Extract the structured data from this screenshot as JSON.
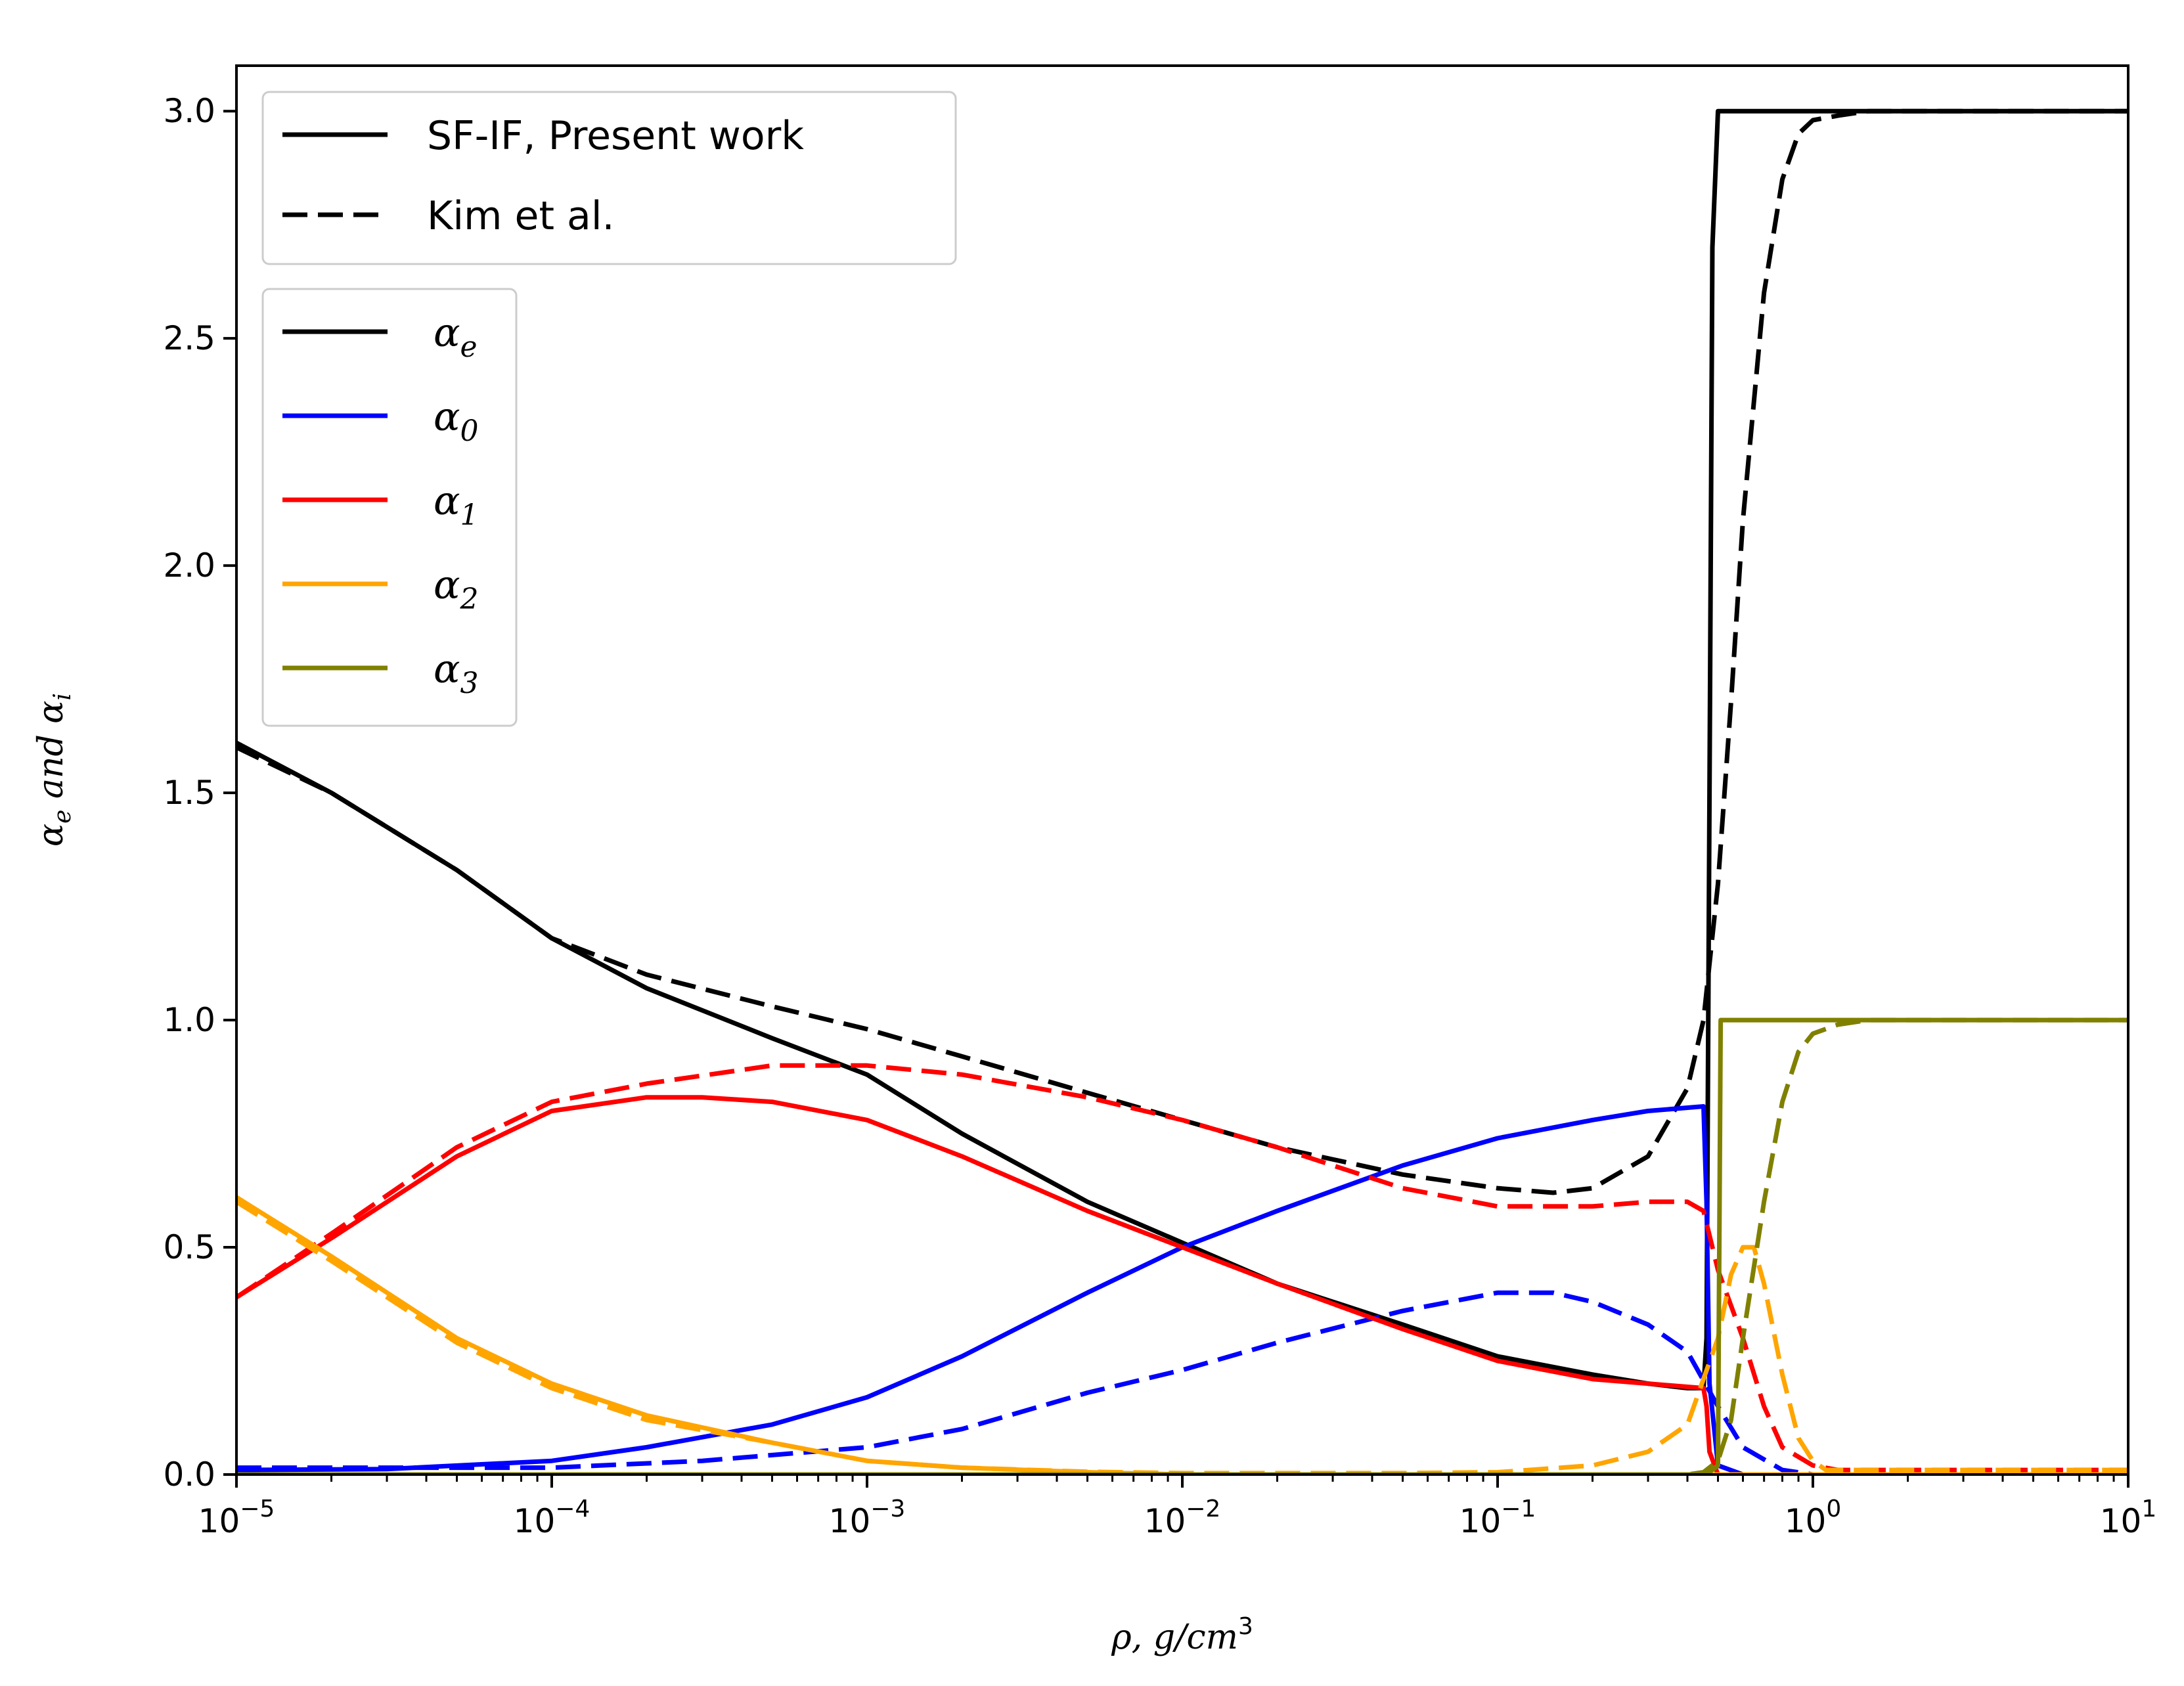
{
  "chart_data": {
    "type": "line",
    "xlabel": "ρ, g/cm3",
    "xlabel_parts": {
      "main": "ρ, g/cm",
      "sup": "3"
    },
    "ylabel": "αe and αi",
    "ylabel_parts": {
      "alpha": "α",
      "sub_e": "e",
      "and": " and ",
      "sub_i": "i"
    },
    "xscale": "log",
    "xlim": [
      1e-05,
      10
    ],
    "ylim": [
      0.0,
      3.1
    ],
    "xticks": [
      {
        "value": 1e-05,
        "base": "10",
        "exp": "−5"
      },
      {
        "value": 0.0001,
        "base": "10",
        "exp": "−4"
      },
      {
        "value": 0.001,
        "base": "10",
        "exp": "−3"
      },
      {
        "value": 0.01,
        "base": "10",
        "exp": "−2"
      },
      {
        "value": 0.1,
        "base": "10",
        "exp": "−1"
      },
      {
        "value": 1,
        "base": "10",
        "exp": "0"
      },
      {
        "value": 10,
        "base": "10",
        "exp": "1"
      }
    ],
    "yticks": [
      {
        "value": 0.0,
        "label": "0.0"
      },
      {
        "value": 0.5,
        "label": "0.5"
      },
      {
        "value": 1.0,
        "label": "1.0"
      },
      {
        "value": 1.5,
        "label": "1.5"
      },
      {
        "value": 2.0,
        "label": "2.0"
      },
      {
        "value": 2.5,
        "label": "2.5"
      },
      {
        "value": 3.0,
        "label": "3.0"
      }
    ],
    "grid": false,
    "legends": [
      {
        "placement": "upper-left",
        "entries": [
          {
            "label": "SF-IF, Present work",
            "style": "solid",
            "color": "#000000"
          },
          {
            "label": "Kim et al.",
            "style": "dashed",
            "color": "#000000"
          }
        ]
      },
      {
        "placement": "upper-left, below first legend",
        "entries": [
          {
            "symbol": "α",
            "sub": "e",
            "color": "#000000"
          },
          {
            "symbol": "α",
            "sub": "0",
            "color": "#0000ff"
          },
          {
            "symbol": "α",
            "sub": "1",
            "color": "#ff0000"
          },
          {
            "symbol": "α",
            "sub": "2",
            "color": "#ffa500"
          },
          {
            "symbol": "α",
            "sub": "3",
            "color": "#808000"
          }
        ]
      }
    ],
    "series": [
      {
        "id": "ae-present",
        "color": "#000000",
        "style": "solid",
        "x": [
          1e-05,
          2e-05,
          5e-05,
          0.0001,
          0.0002,
          0.0005,
          0.001,
          0.002,
          0.005,
          0.01,
          0.02,
          0.05,
          0.1,
          0.2,
          0.3,
          0.4,
          0.45,
          0.46,
          0.47,
          0.48,
          0.5,
          1,
          10
        ],
        "y": [
          1.61,
          1.5,
          1.33,
          1.18,
          1.07,
          0.96,
          0.88,
          0.75,
          0.6,
          0.51,
          0.42,
          0.33,
          0.26,
          0.22,
          0.2,
          0.19,
          0.19,
          0.3,
          1.5,
          2.7,
          3.0,
          3.0,
          3.0
        ]
      },
      {
        "id": "ae-kim",
        "color": "#000000",
        "style": "dashed",
        "x": [
          1e-05,
          2e-05,
          5e-05,
          0.0001,
          0.0002,
          0.0005,
          0.001,
          0.002,
          0.005,
          0.01,
          0.02,
          0.05,
          0.1,
          0.15,
          0.2,
          0.3,
          0.4,
          0.45,
          0.5,
          0.55,
          0.6,
          0.7,
          0.8,
          0.9,
          1.0,
          1.2,
          1.5,
          2,
          3,
          10
        ],
        "y": [
          1.6,
          1.5,
          1.33,
          1.18,
          1.1,
          1.03,
          0.98,
          0.92,
          0.84,
          0.78,
          0.72,
          0.66,
          0.63,
          0.62,
          0.63,
          0.7,
          0.85,
          1.0,
          1.3,
          1.7,
          2.1,
          2.6,
          2.85,
          2.95,
          2.98,
          2.99,
          3.0,
          3.0,
          3.0,
          3.0
        ]
      },
      {
        "id": "a0-present",
        "color": "#0000ff",
        "style": "solid",
        "x": [
          1e-05,
          3e-05,
          0.0001,
          0.0002,
          0.0005,
          0.001,
          0.002,
          0.005,
          0.01,
          0.02,
          0.05,
          0.1,
          0.2,
          0.3,
          0.45,
          0.46,
          0.47,
          0.5,
          0.6,
          1,
          10
        ],
        "y": [
          0.01,
          0.012,
          0.03,
          0.06,
          0.11,
          0.17,
          0.26,
          0.4,
          0.5,
          0.58,
          0.68,
          0.74,
          0.78,
          0.8,
          0.81,
          0.6,
          0.2,
          0.02,
          0.0,
          0.0,
          0.0
        ]
      },
      {
        "id": "a0-kim",
        "color": "#0000ff",
        "style": "dashed",
        "x": [
          1e-05,
          0.0001,
          0.0003,
          0.001,
          0.002,
          0.005,
          0.01,
          0.02,
          0.05,
          0.1,
          0.15,
          0.2,
          0.3,
          0.4,
          0.5,
          0.6,
          0.8,
          1,
          10
        ],
        "y": [
          0.015,
          0.015,
          0.03,
          0.06,
          0.1,
          0.18,
          0.23,
          0.29,
          0.36,
          0.4,
          0.4,
          0.38,
          0.33,
          0.27,
          0.15,
          0.06,
          0.01,
          0.0,
          0.0
        ]
      },
      {
        "id": "a1-present",
        "color": "#ff0000",
        "style": "solid",
        "x": [
          1e-05,
          2e-05,
          5e-05,
          0.0001,
          0.0002,
          0.0003,
          0.0005,
          0.001,
          0.002,
          0.005,
          0.01,
          0.02,
          0.05,
          0.1,
          0.2,
          0.3,
          0.45,
          0.46,
          0.47,
          0.5,
          0.6,
          10
        ],
        "y": [
          0.39,
          0.52,
          0.7,
          0.8,
          0.83,
          0.83,
          0.82,
          0.78,
          0.7,
          0.58,
          0.5,
          0.42,
          0.32,
          0.25,
          0.21,
          0.2,
          0.19,
          0.15,
          0.05,
          0.0,
          0.0,
          0.0
        ]
      },
      {
        "id": "a1-kim",
        "color": "#ff0000",
        "style": "dashed",
        "x": [
          1e-05,
          2e-05,
          5e-05,
          0.0001,
          0.0002,
          0.0005,
          0.001,
          0.002,
          0.005,
          0.01,
          0.02,
          0.05,
          0.1,
          0.2,
          0.3,
          0.4,
          0.45,
          0.5,
          0.6,
          0.7,
          0.8,
          1,
          1.2,
          10
        ],
        "y": [
          0.39,
          0.53,
          0.72,
          0.82,
          0.86,
          0.9,
          0.9,
          0.88,
          0.83,
          0.78,
          0.72,
          0.63,
          0.59,
          0.59,
          0.6,
          0.6,
          0.58,
          0.45,
          0.3,
          0.15,
          0.06,
          0.02,
          0.01,
          0.01
        ]
      },
      {
        "id": "a2-present",
        "color": "#ffa500",
        "style": "solid",
        "x": [
          1e-05,
          2e-05,
          5e-05,
          0.0001,
          0.0002,
          0.0005,
          0.001,
          0.002,
          0.005,
          0.01,
          0.1,
          0.45,
          10
        ],
        "y": [
          0.61,
          0.48,
          0.3,
          0.2,
          0.13,
          0.07,
          0.03,
          0.015,
          0.005,
          0.0,
          0.0,
          0.0,
          0.0
        ]
      },
      {
        "id": "a2-kim",
        "color": "#ffa500",
        "style": "dashed",
        "x": [
          1e-05,
          2e-05,
          5e-05,
          0.0001,
          0.0002,
          0.0005,
          0.001,
          0.002,
          0.005,
          0.01,
          0.05,
          0.1,
          0.2,
          0.3,
          0.4,
          0.5,
          0.55,
          0.6,
          0.65,
          0.7,
          0.8,
          0.9,
          1.0,
          1.1,
          10
        ],
        "y": [
          0.6,
          0.47,
          0.29,
          0.19,
          0.12,
          0.07,
          0.03,
          0.015,
          0.006,
          0.003,
          0.003,
          0.005,
          0.02,
          0.05,
          0.11,
          0.3,
          0.44,
          0.5,
          0.5,
          0.42,
          0.22,
          0.08,
          0.03,
          0.01,
          0.01
        ]
      },
      {
        "id": "a3-present",
        "color": "#808000",
        "style": "solid",
        "x": [
          1e-05,
          0.45,
          0.46,
          0.5,
          0.51,
          10
        ],
        "y": [
          0.0,
          0.0,
          0.0,
          0.02,
          1.0,
          1.0
        ]
      },
      {
        "id": "a3-kim",
        "color": "#808000",
        "style": "dashed",
        "x": [
          1e-05,
          0.1,
          0.4,
          0.45,
          0.5,
          0.55,
          0.6,
          0.7,
          0.8,
          0.9,
          1.0,
          1.2,
          1.5,
          2,
          10
        ],
        "y": [
          0.0,
          0.0,
          0.0,
          0.005,
          0.03,
          0.12,
          0.3,
          0.6,
          0.82,
          0.93,
          0.97,
          0.99,
          1.0,
          1.0,
          1.0
        ]
      }
    ]
  }
}
